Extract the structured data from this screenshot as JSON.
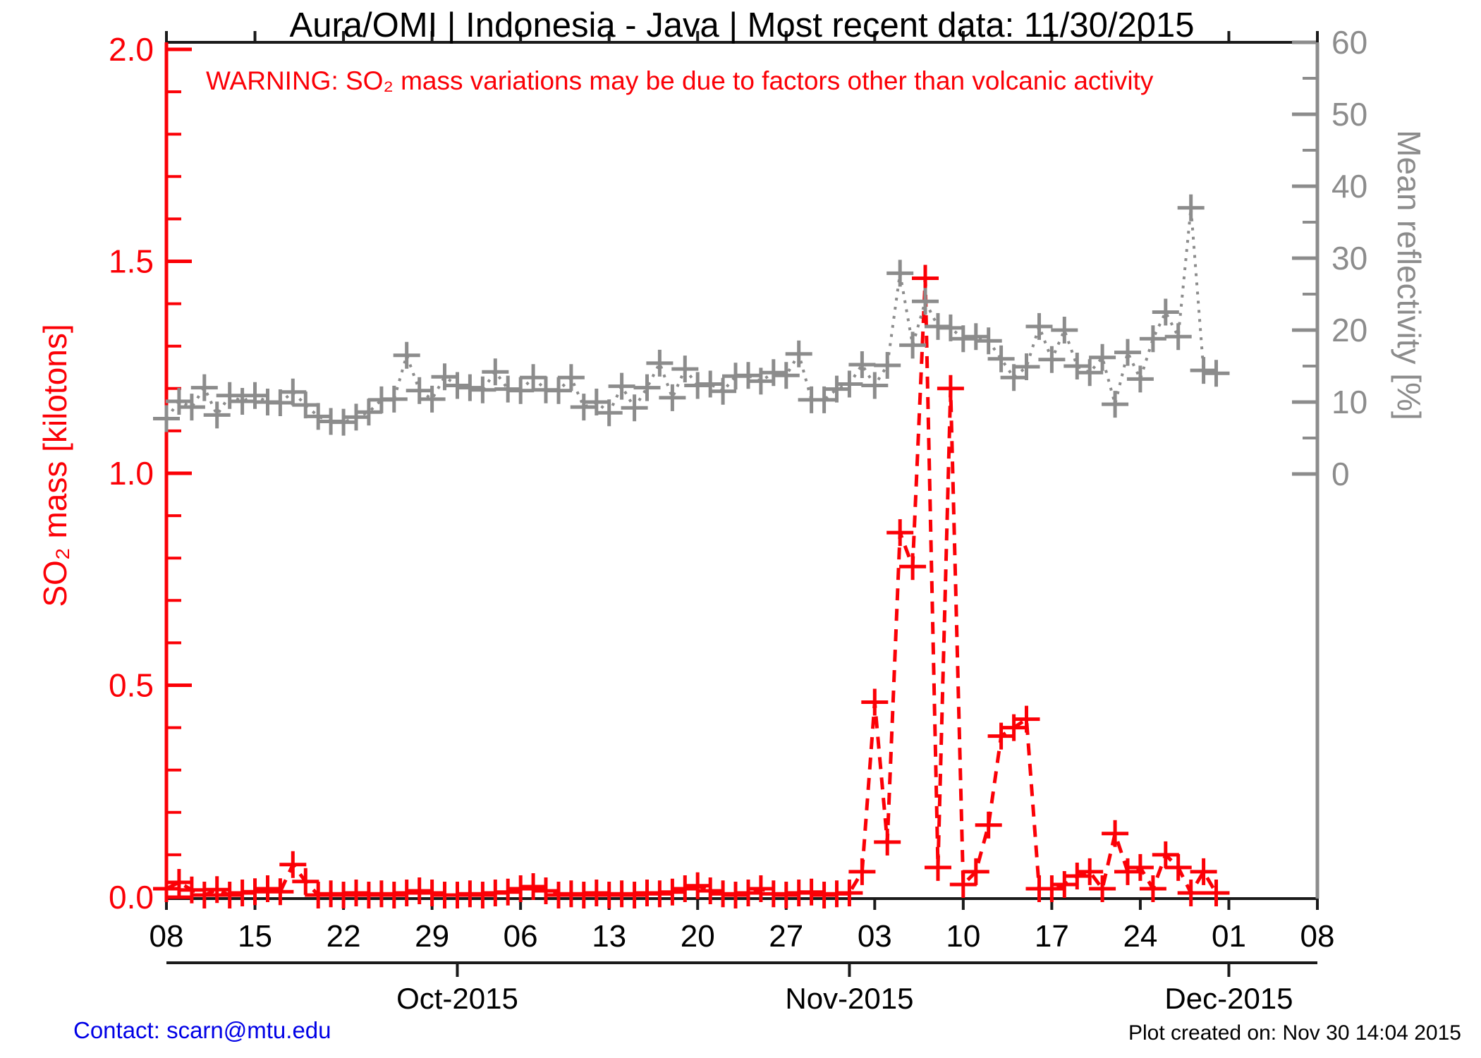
{
  "title": "Aura/OMI | Indonesia - Java | Most recent data: 11/30/2015",
  "warning": "WARNING: SO₂ mass variations may be due to factors other than volcanic activity",
  "footer": {
    "contact": "Contact: scarn@mtu.edu",
    "created": "Plot created on: Nov 30 14:04 2015"
  },
  "colors": {
    "so2_red": "#fb0006",
    "reflectivity_gray": "#8c8c8c",
    "axis_black": "#1a1a1a",
    "contact_blue": "#0000e6",
    "background": "#ffffff"
  },
  "chart_data": {
    "type": "line",
    "title": "Aura/OMI | Indonesia - Java | Most recent data: 11/30/2015",
    "xlabel": "",
    "start_date": "2015-09-08",
    "end_date": "2015-11-30",
    "x_axis": {
      "tick_labels": [
        "08",
        "15",
        "22",
        "29",
        "06",
        "13",
        "20",
        "27",
        "03",
        "10",
        "17",
        "24",
        "01",
        "08"
      ],
      "tick_day_offsets": [
        0,
        7,
        14,
        21,
        28,
        35,
        42,
        49,
        56,
        63,
        70,
        77,
        84,
        91
      ],
      "total_days": 91,
      "month_ticks": [
        {
          "label": "Oct-2015",
          "day_offset": 23
        },
        {
          "label": "Nov-2015",
          "day_offset": 54
        },
        {
          "label": "Dec-2015",
          "day_offset": 84
        }
      ]
    },
    "axes": {
      "left": {
        "label": "SO₂ mass [kilotons]",
        "min": 0.0,
        "max": 2.0,
        "major_step": 0.5,
        "minor_step": 0.1,
        "major_tick_labels": [
          "0.0",
          "0.5",
          "1.0",
          "1.5",
          "2.0"
        ],
        "color": "#fb0006"
      },
      "right": {
        "label": "Mean reflectivity [%]",
        "min": 0,
        "max": 60,
        "major_step": 10,
        "minor_step": 5,
        "major_tick_labels": [
          "0",
          "10",
          "20",
          "30",
          "40",
          "50",
          "60"
        ],
        "color": "#8c8c8c"
      }
    },
    "legend": "none",
    "grid": false,
    "series": [
      {
        "name": "SO2 mass",
        "axis": "left",
        "units": "kilotons",
        "line_style": "dashed",
        "marker": "plus",
        "color": "#fb0006",
        "values": [
          0.02,
          0.035,
          0.017,
          0.005,
          0.018,
          0.005,
          0.01,
          0.013,
          0.02,
          0.013,
          0.077,
          0.037,
          0.005,
          0.008,
          0.005,
          0.01,
          0.005,
          0.008,
          0.005,
          0.01,
          0.015,
          0.01,
          0.005,
          0.005,
          0.008,
          0.005,
          0.01,
          0.012,
          0.02,
          0.025,
          0.015,
          0.005,
          0.008,
          0.005,
          0.01,
          0.005,
          0.008,
          0.005,
          0.01,
          0.008,
          0.012,
          0.02,
          0.027,
          0.015,
          0.008,
          0.005,
          0.01,
          0.02,
          0.008,
          0.005,
          0.01,
          0.012,
          0.005,
          0.008,
          0.01,
          0.06,
          0.46,
          0.13,
          0.86,
          0.78,
          1.46,
          0.07,
          1.2,
          0.03,
          0.06,
          0.17,
          0.38,
          0.4,
          0.42,
          0.02,
          0.02,
          0.03,
          0.05,
          0.06,
          0.02,
          0.15,
          0.06,
          0.07,
          0.02,
          0.1,
          0.07,
          0.01,
          0.06,
          0.01
        ]
      },
      {
        "name": "Mean reflectivity",
        "axis": "right",
        "units": "%",
        "line_style": "dotted",
        "marker": "plus",
        "color": "#8c8c8c",
        "values": [
          7.7,
          10.1,
          9.3,
          12.0,
          8.2,
          10.9,
          10.1,
          10.9,
          10.0,
          9.9,
          11.4,
          9.6,
          8.0,
          7.3,
          7.2,
          7.9,
          8.6,
          10.3,
          10.4,
          16.5,
          11.6,
          10.4,
          13.5,
          12.3,
          12.0,
          11.7,
          14.2,
          11.8,
          11.6,
          13.4,
          11.7,
          11.6,
          13.4,
          9.3,
          10.0,
          8.5,
          12.2,
          9.2,
          12.0,
          15.4,
          10.6,
          14.6,
          12.3,
          12.5,
          11.5,
          13.6,
          13.7,
          12.9,
          14.1,
          13.7,
          16.7,
          10.3,
          10.3,
          11.8,
          12.5,
          15.2,
          12.3,
          15.1,
          27.9,
          17.9,
          24.0,
          20.5,
          20.3,
          18.8,
          19.1,
          18.5,
          16.0,
          13.4,
          14.9,
          20.5,
          15.9,
          20.0,
          15.0,
          14.1,
          16.2,
          9.7,
          16.9,
          13.2,
          18.8,
          22.5,
          19.1,
          37.0,
          14.4,
          14.0
        ]
      }
    ]
  }
}
